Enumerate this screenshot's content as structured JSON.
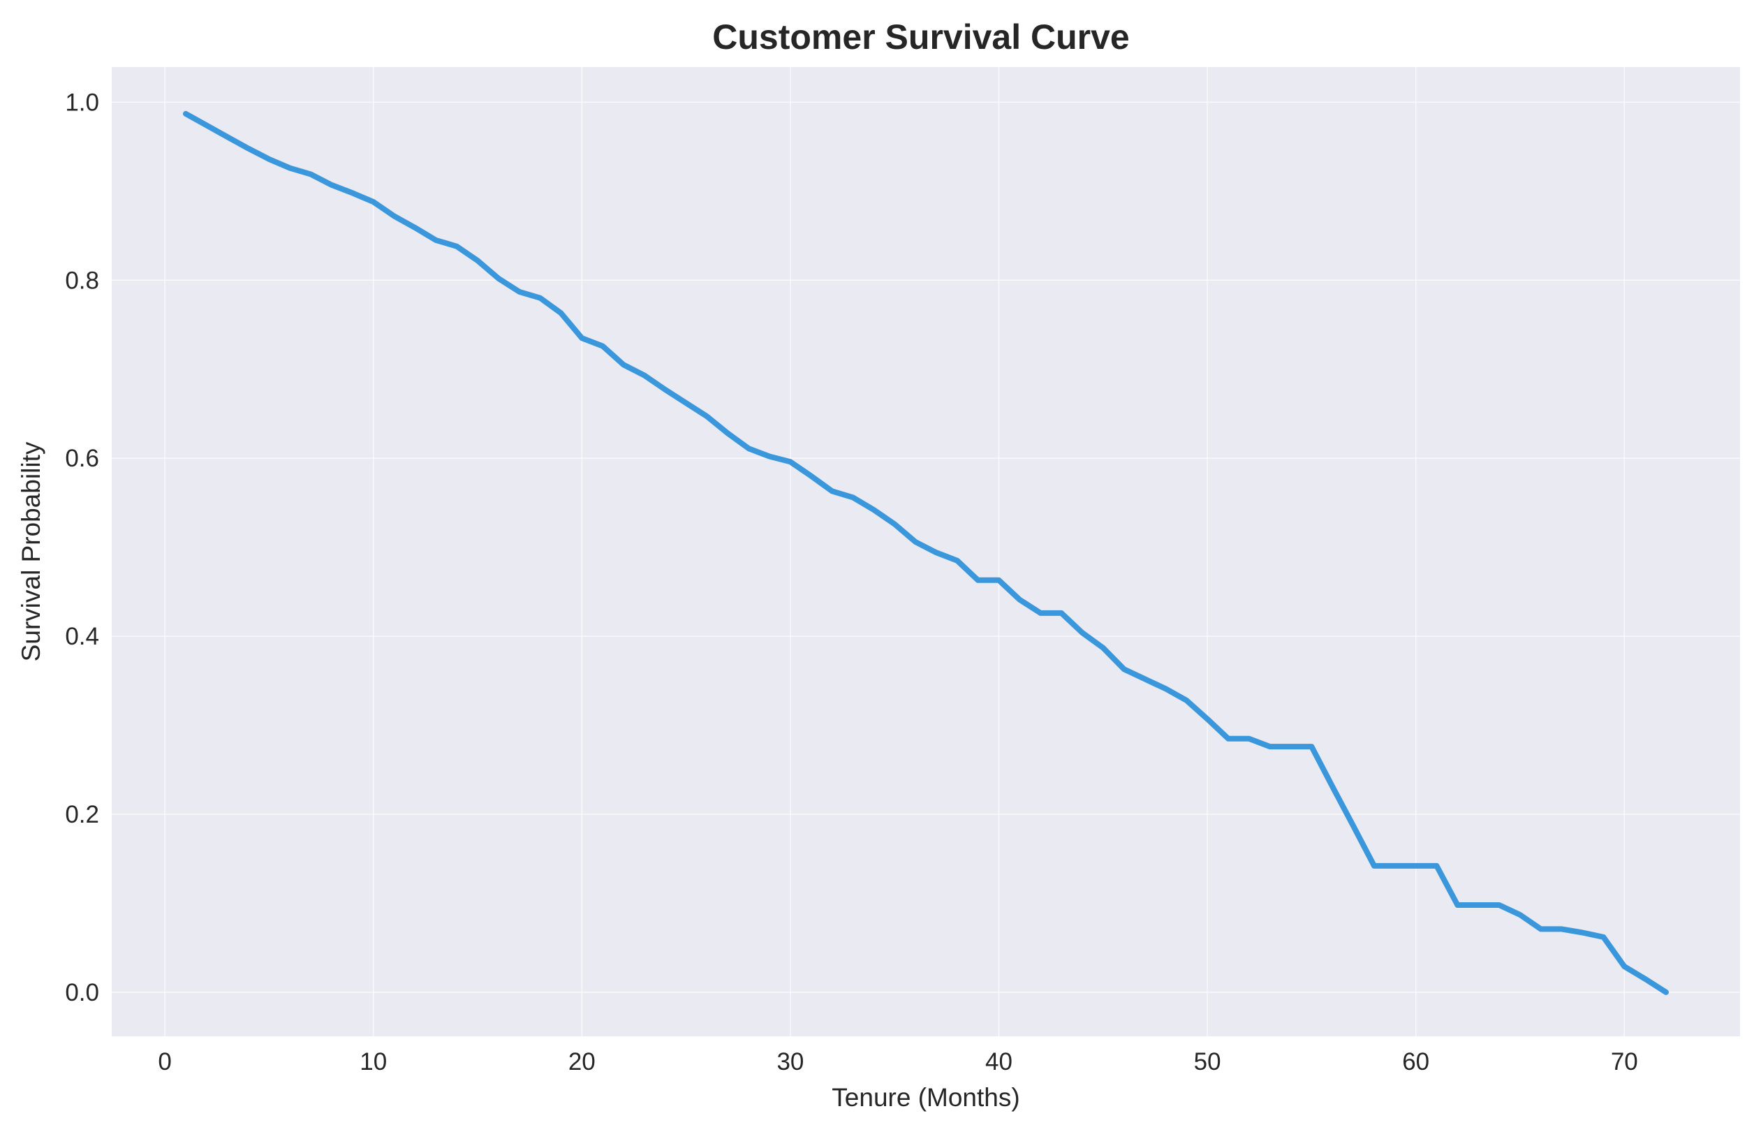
{
  "chart_data": {
    "type": "line",
    "title": "Customer Survival Curve",
    "xlabel": "Tenure (Months)",
    "ylabel": "Survival Probability",
    "xlim": [
      -2.55,
      75.55
    ],
    "ylim": [
      -0.0495,
      1.0395
    ],
    "xticks": [
      0,
      10,
      20,
      30,
      40,
      50,
      60,
      70
    ],
    "yticks": [
      0.0,
      0.2,
      0.4,
      0.6,
      0.8,
      1.0
    ],
    "xtick_labels": [
      "0",
      "10",
      "20",
      "30",
      "40",
      "50",
      "60",
      "70"
    ],
    "ytick_labels": [
      "0.0",
      "0.2",
      "0.4",
      "0.6",
      "0.8",
      "1.0"
    ],
    "grid": true,
    "colors": {
      "background": "#eaeaf2",
      "grid": "#ffffff",
      "line": "#3a97db",
      "text": "#262626"
    },
    "series": [
      {
        "x": [
          1,
          2,
          3,
          4,
          5,
          6,
          7,
          8,
          9,
          10,
          11,
          12,
          13,
          14,
          15,
          16,
          17,
          18,
          19,
          20,
          21,
          22,
          23,
          24,
          25,
          26,
          27,
          28,
          29,
          30,
          31,
          32,
          33,
          34,
          35,
          36,
          37,
          38,
          39,
          40,
          41,
          42,
          43,
          44,
          45,
          46,
          47,
          48,
          49,
          50,
          51,
          52,
          53,
          54,
          55,
          56,
          57,
          58,
          59,
          60,
          61,
          62,
          63,
          64,
          65,
          66,
          67,
          68,
          69,
          70,
          71,
          72
        ],
        "y": [
          0.987,
          0.974,
          0.961,
          0.948,
          0.936,
          0.926,
          0.919,
          0.907,
          0.898,
          0.888,
          0.872,
          0.859,
          0.845,
          0.838,
          0.822,
          0.802,
          0.787,
          0.78,
          0.763,
          0.735,
          0.726,
          0.705,
          0.693,
          0.677,
          0.662,
          0.647,
          0.628,
          0.611,
          0.602,
          0.596,
          0.58,
          0.563,
          0.556,
          0.542,
          0.526,
          0.506,
          0.494,
          0.485,
          0.463,
          0.463,
          0.441,
          0.426,
          0.426,
          0.404,
          0.387,
          0.363,
          0.352,
          0.341,
          0.328,
          0.307,
          0.285,
          0.285,
          0.276,
          0.276,
          0.276,
          0.231,
          0.187,
          0.142,
          0.142,
          0.142,
          0.142,
          0.098,
          0.098,
          0.098,
          0.087,
          0.071,
          0.071,
          0.067,
          0.062,
          0.029,
          0.015,
          0.0
        ]
      }
    ]
  }
}
